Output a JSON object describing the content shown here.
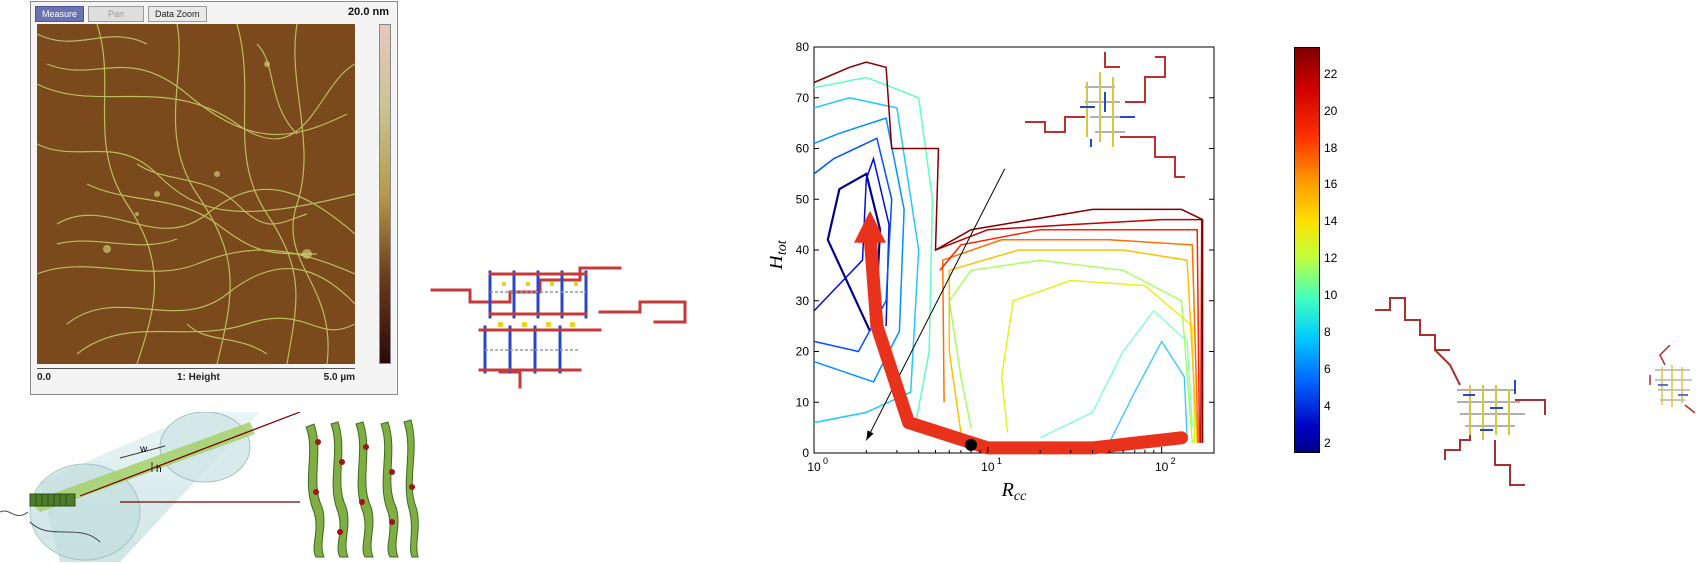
{
  "afm_viewer": {
    "buttons": [
      {
        "label": "Measure",
        "state": "active"
      },
      {
        "label": "Pan",
        "state": "disabled"
      },
      {
        "label": "Data Zoom",
        "state": "normal"
      }
    ],
    "scale_max": "20.0 nm",
    "footer_left": "0.0",
    "footer_center": "1: Height",
    "footer_right": "5.0 µm",
    "colors": {
      "background": "#7a4a1c",
      "fibril": "#c9cf6a"
    }
  },
  "fibril_diagram": {
    "width_label": "w",
    "height_label": "h"
  },
  "chart_data": {
    "type": "heatmap",
    "subtype": "contour",
    "xlabel": "R_cc",
    "ylabel": "H_tot",
    "xscale": "log",
    "xlim": [
      1,
      200
    ],
    "ylim": [
      0,
      80
    ],
    "x_ticks": [
      "10",
      "10",
      "10"
    ],
    "x_tick_exponents": [
      "0",
      "1",
      "2"
    ],
    "y_ticks": [
      "0",
      "10",
      "20",
      "30",
      "40",
      "50",
      "60",
      "70",
      "80"
    ],
    "colorbar_ticks": [
      "2",
      "4",
      "6",
      "8",
      "10",
      "12",
      "14",
      "16",
      "18",
      "20",
      "22"
    ],
    "colorbar_range": [
      1.5,
      23.5
    ],
    "marker_point": {
      "x": 8,
      "y": 1.6
    },
    "thin_arrow": {
      "from": {
        "x": 12.5,
        "y": 56
      },
      "to": {
        "x": 2.0,
        "y": 2.5
      }
    },
    "thick_arrow": {
      "path": [
        [
          130,
          3
        ],
        [
          40,
          1
        ],
        [
          10,
          1
        ],
        [
          3.5,
          6
        ],
        [
          2.3,
          25
        ],
        [
          2.1,
          43
        ]
      ]
    },
    "grid": false,
    "legend": "none"
  }
}
